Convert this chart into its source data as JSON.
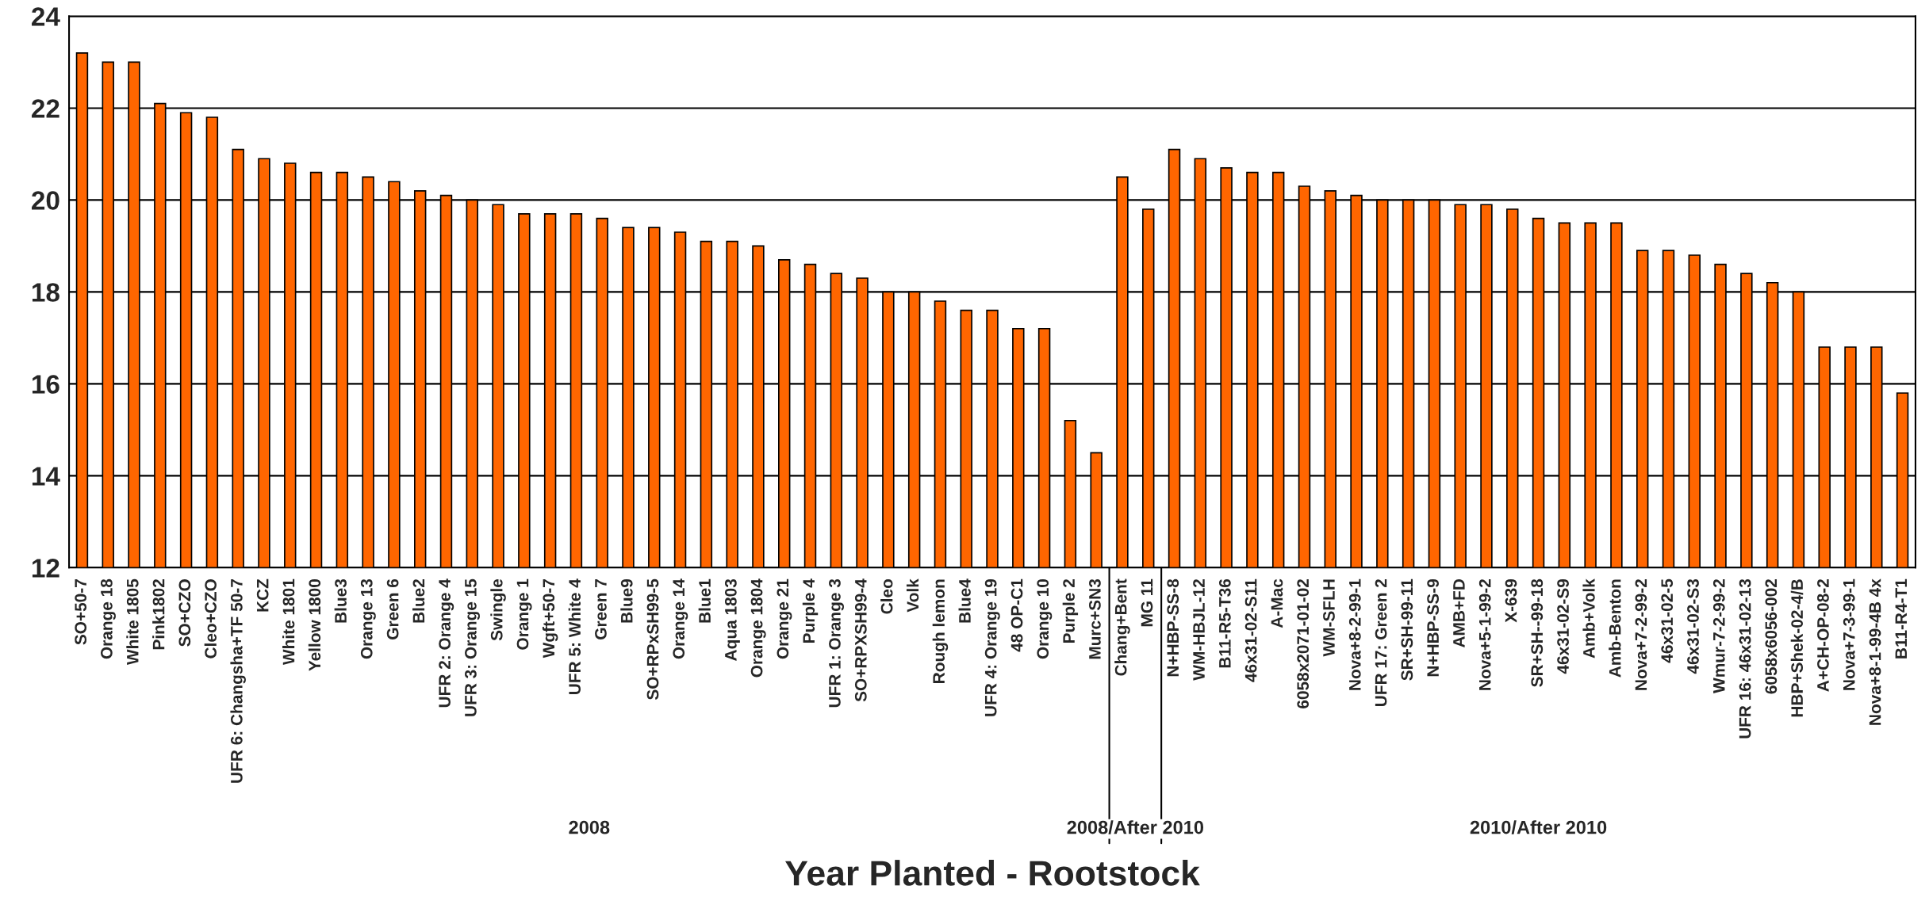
{
  "chart_data": {
    "type": "bar",
    "xlabel": "Year Planted - Rootstock",
    "categories": [
      "SO+50-7",
      "Orange 18",
      "White 1805",
      "Pink1802",
      "SO+CZO",
      "Cleo+CZO",
      "UFR 6: Changsha+TF 50-7",
      "KCZ",
      "White 1801",
      "Yellow 1800",
      "Blue3",
      "Orange 13",
      "Green 6",
      "Blue2",
      "UFR 2: Orange 4",
      "UFR 3: Orange 15",
      "Swingle",
      "Orange 1",
      "Wgft+50-7",
      "UFR 5: White 4",
      "Green 7",
      "Blue9",
      "SO+RPxSH99-5",
      "Orange 14",
      "Blue1",
      "Aqua 1803",
      "Orange 1804",
      "Orange 21",
      "Purple 4",
      "UFR 1: Orange 3",
      "SO+RPXSH99-4",
      "Cleo",
      "Volk",
      "Rough lemon",
      "Blue4",
      "UFR 4: Orange 19",
      "48 OP-C1",
      "Orange 10",
      "Purple 2",
      "Murc+SN3",
      "Chang+Bent",
      "MG 11",
      "N+HBP-SS-8",
      "WM-HBJL-12",
      "B11-R5-T36",
      "46x31-02-S11",
      "A-Mac",
      "6058x2071-01-02",
      "WM-SFLH",
      "Nova+8-2-99-1",
      "UFR 17: Green 2",
      "SR+SH-99-11",
      "N+HBP-SS-9",
      "AMB+FD",
      "Nova+5-1-99-2",
      "X-639",
      "SR+SH--99-18",
      "46x31-02-S9",
      "Amb+Volk",
      "Amb-Benton",
      "Nova+7-2-99-2",
      "46x31-02-5",
      "46x31-02-S3",
      "Wmur-7-2-99-2",
      "UFR 16: 46x31-02-13",
      "6058x6056-002",
      "HBP+Shek-02-4/B",
      "A+CH-OP-08-2",
      "Nova+7-3-99-1",
      "Nova+8-1-99-4B 4x",
      "B11-R4-T1"
    ],
    "values": [
      23.2,
      23.0,
      23.0,
      22.1,
      21.9,
      21.8,
      21.1,
      20.9,
      20.8,
      20.6,
      20.6,
      20.5,
      20.4,
      20.2,
      20.1,
      20.0,
      19.9,
      19.7,
      19.7,
      19.7,
      19.6,
      19.4,
      19.4,
      19.3,
      19.1,
      19.1,
      19.0,
      18.7,
      18.6,
      18.4,
      18.3,
      18.0,
      18.0,
      17.8,
      17.6,
      17.6,
      17.2,
      17.2,
      15.2,
      14.5,
      20.5,
      19.8,
      21.1,
      20.9,
      20.7,
      20.6,
      20.6,
      20.3,
      20.2,
      20.1,
      20.0,
      20.0,
      20.0,
      19.9,
      19.9,
      19.8,
      19.6,
      19.5,
      19.5,
      19.5,
      18.9,
      18.9,
      18.8,
      18.6,
      18.4,
      18.2,
      18.0,
      16.8,
      16.8,
      16.8,
      15.8
    ],
    "color": "#ff6600",
    "ylim": [
      12,
      24
    ],
    "yticks": [
      12,
      14,
      16,
      18,
      20,
      22,
      24
    ],
    "grid": "y",
    "annotations": [
      "2008",
      "2008/After 2010",
      "2010/After 2010"
    ]
  }
}
